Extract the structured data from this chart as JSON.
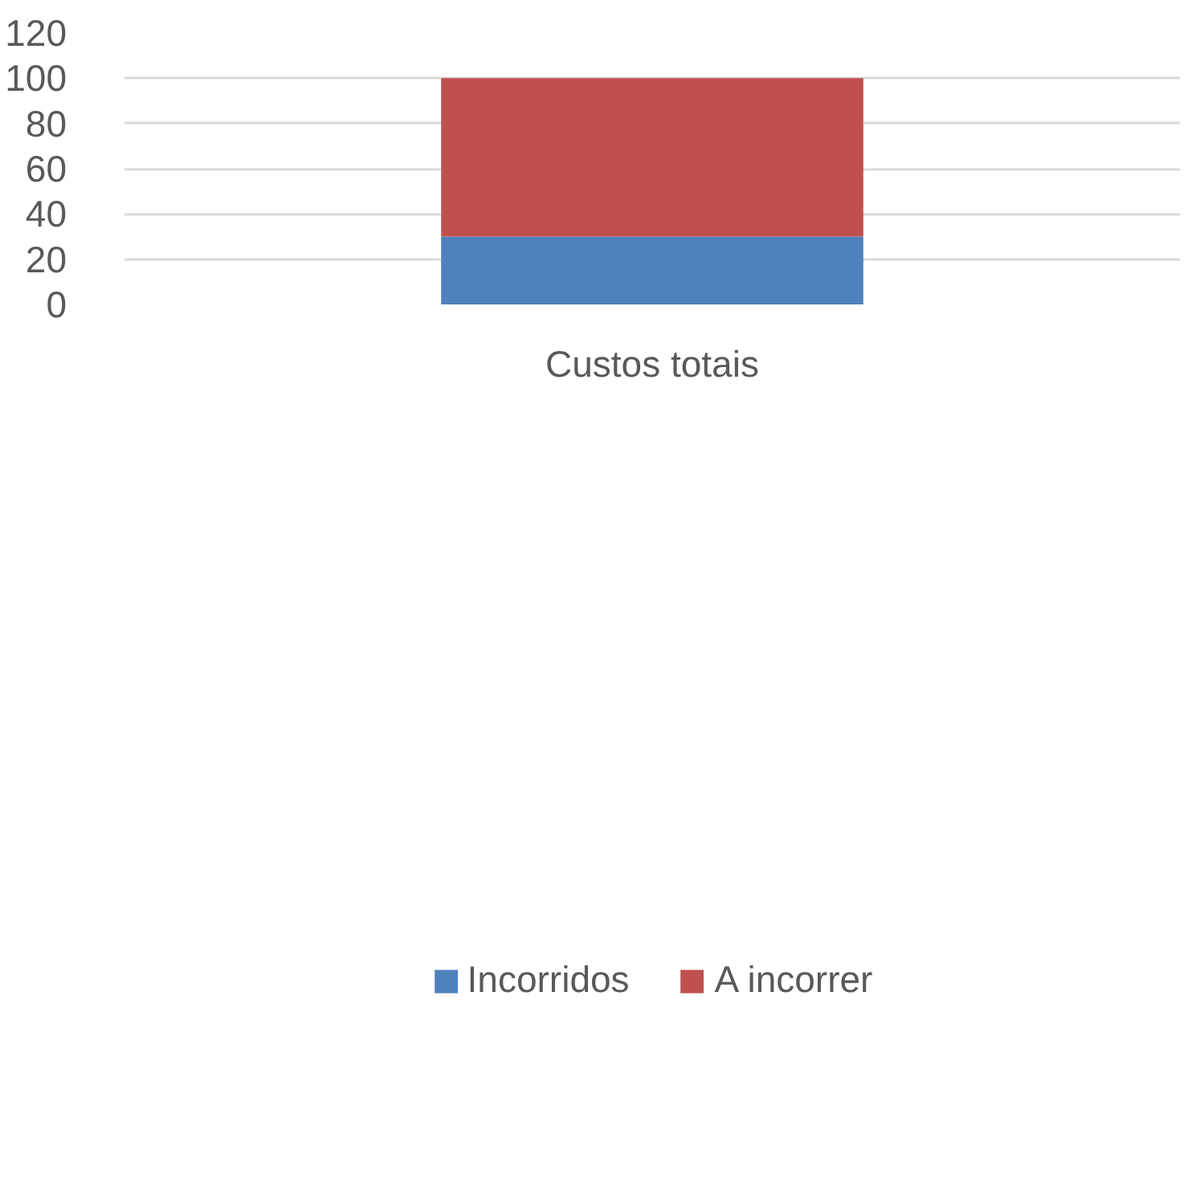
{
  "chart_data": {
    "type": "bar",
    "stacked": true,
    "categories": [
      "Custos totais"
    ],
    "series": [
      {
        "name": "Incorridos",
        "color": "#4f81bd",
        "values": [
          30
        ]
      },
      {
        "name": "A incorrer",
        "color": "#c0504d",
        "values": [
          70
        ]
      }
    ],
    "ylim": [
      0,
      120
    ],
    "yticks": [
      0,
      20,
      40,
      60,
      80,
      100,
      120
    ],
    "grid": "y",
    "legend": "bottom"
  }
}
